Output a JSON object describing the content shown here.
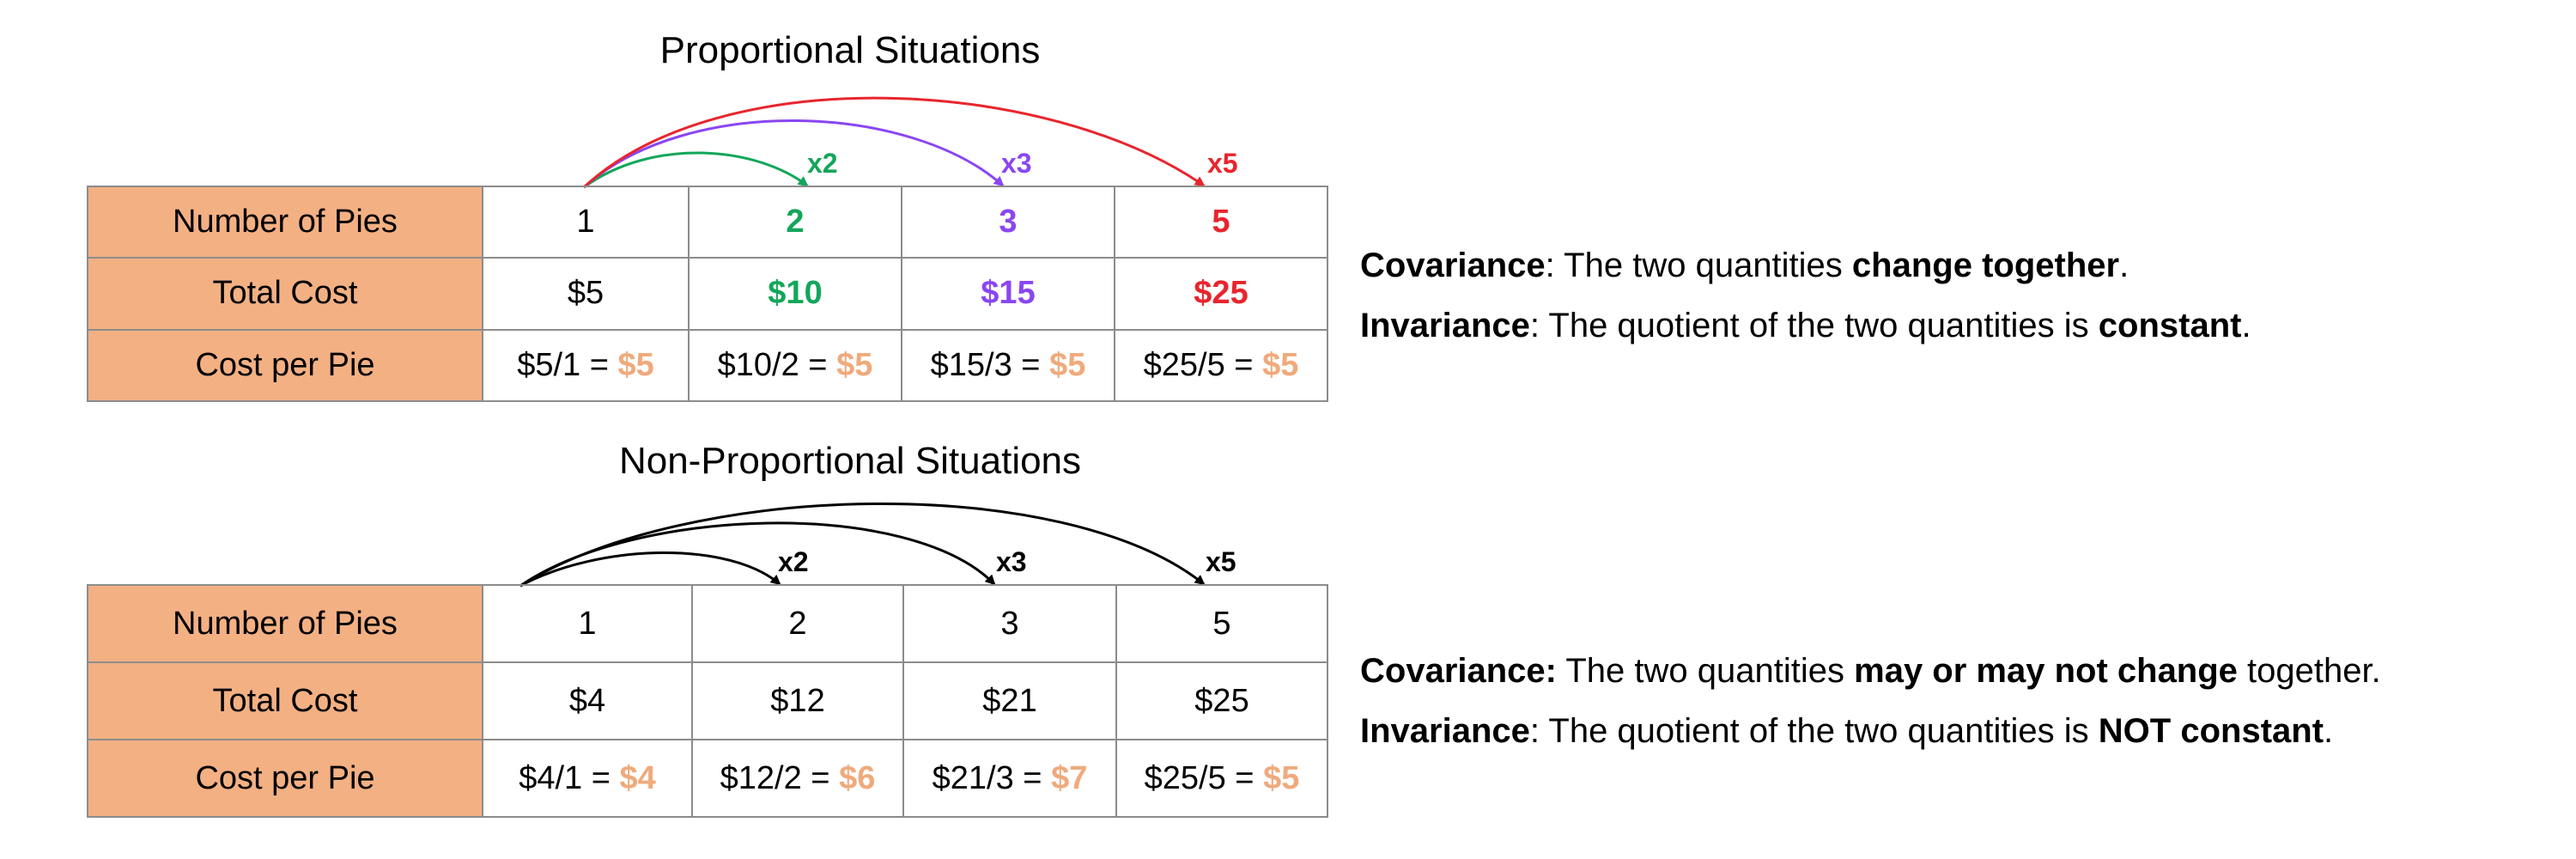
{
  "colors": {
    "header_fill": "#f3b083",
    "grid": "#8c8c8c",
    "green": "#13a65a",
    "purple": "#8a46f0",
    "red": "#e8252d",
    "rate": "#efaa7c",
    "black": "#000000"
  },
  "proportional": {
    "title": "Proportional Situations",
    "multipliers": [
      {
        "label": "x2",
        "color": "#13a65a"
      },
      {
        "label": "x3",
        "color": "#8a46f0"
      },
      {
        "label": "x5",
        "color": "#e8252d"
      }
    ],
    "row_headers": [
      "Number of Pies",
      "Total Cost",
      "Cost per Pie"
    ],
    "pies": [
      {
        "text": "1",
        "color": "#000000",
        "bold": false
      },
      {
        "text": "2",
        "color": "#13a65a",
        "bold": true
      },
      {
        "text": "3",
        "color": "#8a46f0",
        "bold": true
      },
      {
        "text": "5",
        "color": "#e8252d",
        "bold": true
      }
    ],
    "costs": [
      {
        "text": "$5",
        "color": "#000000",
        "bold": false
      },
      {
        "text": "$10",
        "color": "#13a65a",
        "bold": true
      },
      {
        "text": "$15",
        "color": "#8a46f0",
        "bold": true
      },
      {
        "text": "$25",
        "color": "#e8252d",
        "bold": true
      }
    ],
    "per_pie": [
      {
        "expr": "$5/1 = ",
        "result": "$5"
      },
      {
        "expr": "$10/2 = ",
        "result": "$5"
      },
      {
        "expr": "$15/3 = ",
        "result": "$5"
      },
      {
        "expr": "$25/5 = ",
        "result": "$5"
      }
    ],
    "notes": {
      "covariance_term": "Covariance",
      "covariance_text": ": The two quantities ",
      "covariance_bold": "change together",
      "covariance_end": ".",
      "invariance_term": "Invariance",
      "invariance_text": ": The quotient of the two quantities is ",
      "invariance_bold": "constant",
      "invariance_end": "."
    }
  },
  "non_proportional": {
    "title": "Non-Proportional Situations",
    "multipliers": [
      {
        "label": "x2",
        "color": "#000000"
      },
      {
        "label": "x3",
        "color": "#000000"
      },
      {
        "label": "x5",
        "color": "#000000"
      }
    ],
    "row_headers": [
      "Number of Pies",
      "Total Cost",
      "Cost per Pie"
    ],
    "pies": [
      "1",
      "2",
      "3",
      "5"
    ],
    "costs": [
      "$4",
      "$12",
      "$21",
      "$25"
    ],
    "per_pie": [
      {
        "expr": "$4/1 = ",
        "result": "$4"
      },
      {
        "expr": "$12/2 = ",
        "result": "$6"
      },
      {
        "expr": "$21/3 = ",
        "result": "$7"
      },
      {
        "expr": "$25/5 = ",
        "result": "$5"
      }
    ],
    "notes": {
      "covariance_term": "Covariance:",
      "covariance_text": " The two quantities ",
      "covariance_bold": "may or may not change",
      "covariance_end": " together.",
      "invariance_term": "Invariance",
      "invariance_text": ": The quotient of the two quantities is ",
      "invariance_bold": "NOT constant",
      "invariance_end": "."
    }
  }
}
